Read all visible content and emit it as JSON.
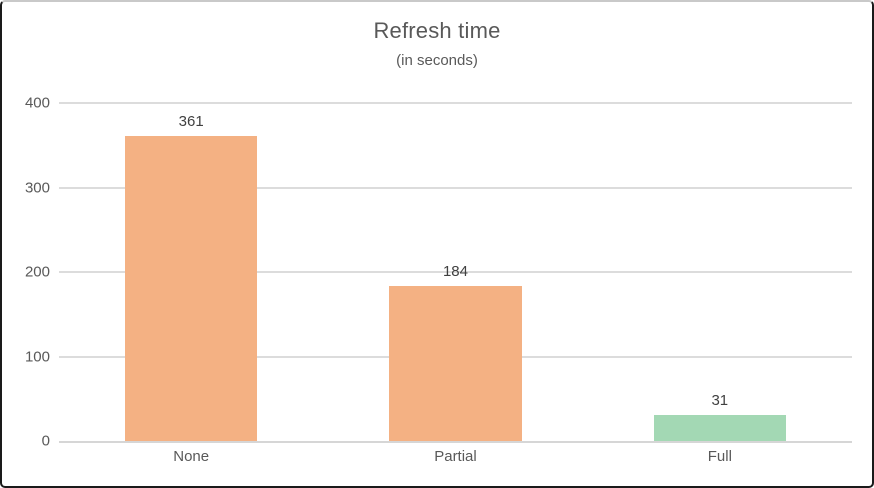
{
  "chart_data": {
    "type": "bar",
    "title": "Refresh time",
    "subtitle": "(in seconds)",
    "categories": [
      "None",
      "Partial",
      "Full"
    ],
    "values": [
      361,
      184,
      31
    ],
    "value_labels": [
      "361",
      "184",
      "31"
    ],
    "bar_colors": [
      "#F4B183",
      "#F4B183",
      "#A3D8B4"
    ],
    "xlabel": "",
    "ylabel": "",
    "ylim": [
      0,
      400
    ],
    "yticks": [
      0,
      100,
      200,
      300,
      400
    ],
    "grid": true,
    "legend": false,
    "colors": {
      "orange_bar": "#F4B183",
      "green_bar": "#A3D8B4",
      "gridline": "#DCDCDC",
      "axis_line": "#D6D6D6",
      "title_text": "#595959",
      "tick_text": "#595959",
      "data_label_text": "#404040",
      "border": "#1A1A1A",
      "background": "#FFFFFF"
    }
  }
}
